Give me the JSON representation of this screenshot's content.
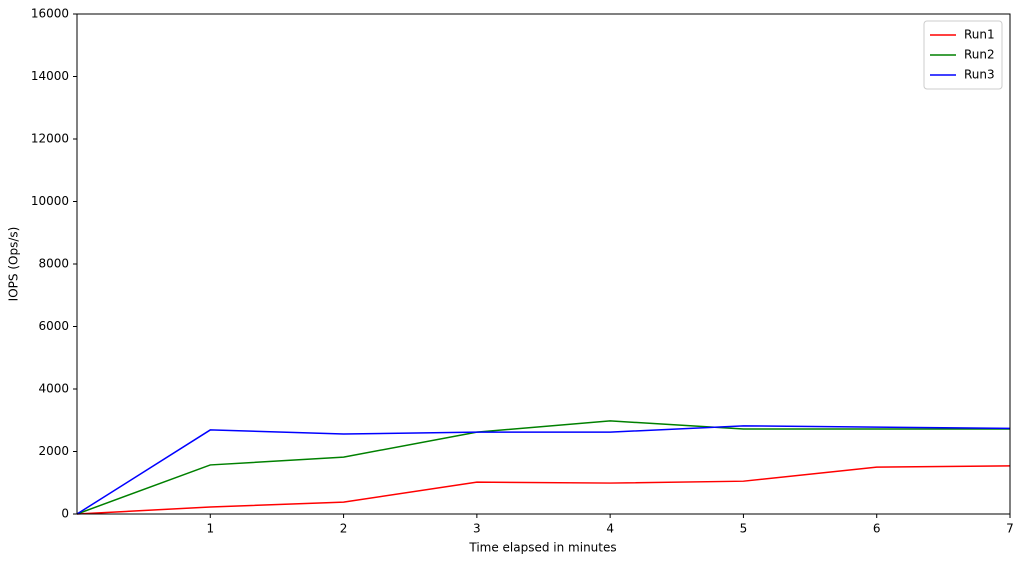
{
  "chart_data": {
    "type": "line",
    "x_label": "Time elapsed in minutes",
    "y_label": "IOPS (Ops/s)",
    "x": [
      0,
      1,
      2,
      3,
      4,
      5,
      6,
      7
    ],
    "series": [
      {
        "name": "Run1",
        "color": "#ff0000",
        "values": [
          0,
          224,
          380,
          1020,
          990,
          1050,
          1500,
          1540
        ]
      },
      {
        "name": "Run2",
        "color": "#008000",
        "values": [
          0,
          1570,
          1820,
          2620,
          2980,
          2720,
          2720,
          2720
        ]
      },
      {
        "name": "Run3",
        "color": "#0000ff",
        "values": [
          0,
          2690,
          2560,
          2620,
          2620,
          2820,
          2780,
          2740
        ]
      }
    ],
    "xlim": [
      0,
      7
    ],
    "xticks": [
      1,
      2,
      3,
      4,
      5,
      6,
      7
    ],
    "ylim": [
      0,
      16000
    ],
    "yticks": [
      0,
      2000,
      4000,
      6000,
      8000,
      10000,
      12000,
      14000,
      16000
    ],
    "legend": "upper right",
    "grid": false
  }
}
